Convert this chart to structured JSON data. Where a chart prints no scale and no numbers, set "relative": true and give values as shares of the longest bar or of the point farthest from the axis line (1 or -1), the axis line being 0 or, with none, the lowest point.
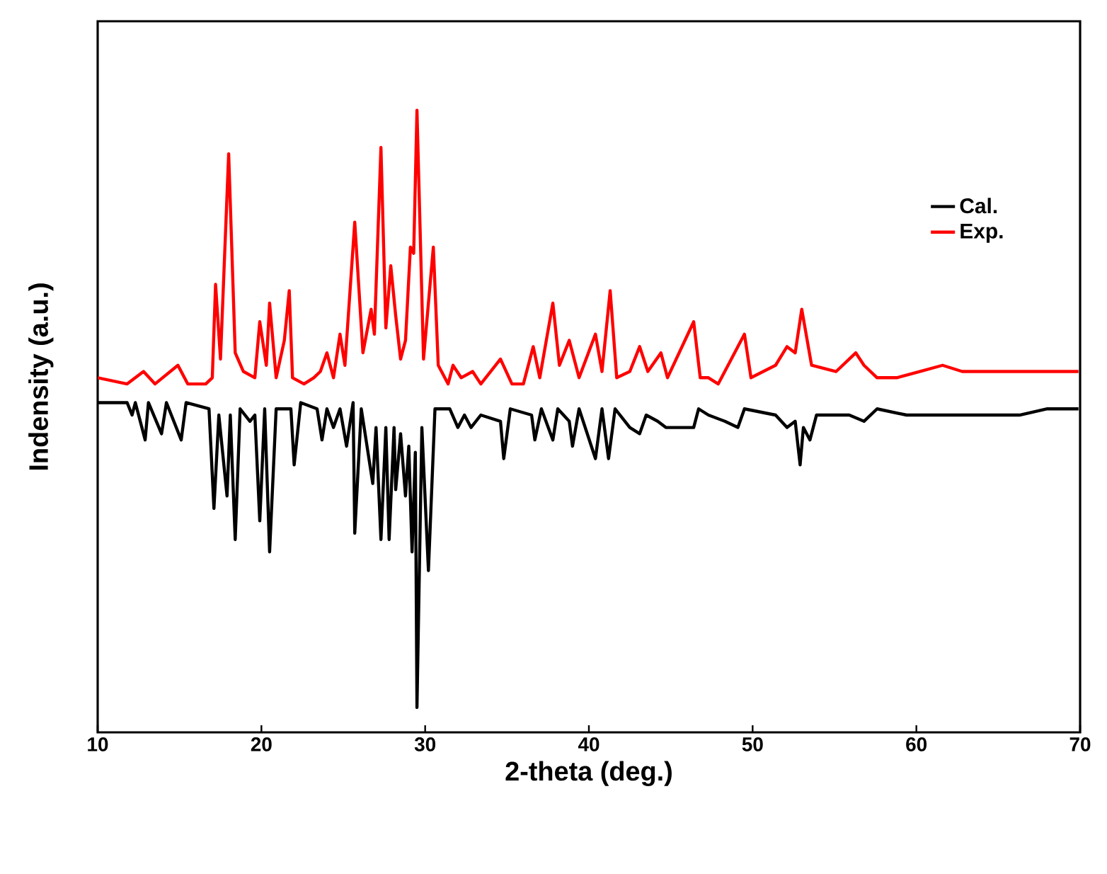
{
  "chart_data": {
    "type": "line",
    "xlabel": "2-theta (deg.)",
    "ylabel": "Indensity (a.u.)",
    "relative": true,
    "xlim": [
      10,
      70
    ],
    "xticks": [
      10,
      20,
      30,
      40,
      50,
      60,
      70
    ],
    "grid": false,
    "legend": "top right",
    "marker": "none",
    "line_style": "solid",
    "series": [
      {
        "name": "Cal.",
        "color": "#000000",
        "x": [
          10.0,
          11.8,
          12.1,
          12.3,
          12.9,
          13.1,
          13.9,
          14.2,
          15.1,
          15.4,
          16.8,
          17.1,
          17.4,
          17.9,
          18.1,
          18.4,
          18.7,
          19.3,
          19.6,
          19.9,
          20.2,
          20.5,
          20.9,
          21.8,
          22.0,
          22.4,
          23.4,
          23.7,
          24.0,
          24.4,
          24.8,
          25.2,
          25.6,
          25.7,
          26.1,
          26.8,
          27.0,
          27.3,
          27.6,
          27.8,
          28.1,
          28.2,
          28.5,
          28.8,
          29.0,
          29.2,
          29.4,
          29.5,
          29.8,
          30.2,
          30.6,
          31.5,
          32.0,
          32.4,
          32.8,
          33.4,
          34.6,
          34.8,
          35.2,
          36.5,
          36.7,
          37.1,
          37.8,
          38.1,
          38.8,
          39.0,
          39.4,
          40.4,
          40.8,
          41.2,
          41.6,
          42.5,
          43.1,
          43.5,
          44.2,
          44.7,
          46.4,
          46.7,
          47.3,
          48.3,
          49.1,
          49.5,
          51.4,
          52.1,
          52.6,
          52.9,
          53.1,
          53.5,
          53.9,
          55.9,
          56.8,
          57.6,
          59.4,
          60.2,
          62.8,
          64.5,
          66.3,
          68.0,
          69.9
        ],
        "values": [
          0.53,
          0.53,
          0.51,
          0.53,
          0.47,
          0.53,
          0.48,
          0.53,
          0.47,
          0.53,
          0.52,
          0.36,
          0.51,
          0.38,
          0.51,
          0.31,
          0.52,
          0.5,
          0.51,
          0.34,
          0.52,
          0.29,
          0.52,
          0.52,
          0.43,
          0.53,
          0.52,
          0.47,
          0.52,
          0.49,
          0.52,
          0.46,
          0.53,
          0.32,
          0.52,
          0.4,
          0.49,
          0.31,
          0.49,
          0.31,
          0.49,
          0.39,
          0.48,
          0.38,
          0.46,
          0.29,
          0.45,
          0.04,
          0.49,
          0.26,
          0.52,
          0.52,
          0.49,
          0.51,
          0.49,
          0.51,
          0.5,
          0.44,
          0.52,
          0.51,
          0.47,
          0.52,
          0.47,
          0.52,
          0.5,
          0.46,
          0.52,
          0.44,
          0.52,
          0.44,
          0.52,
          0.49,
          0.48,
          0.51,
          0.5,
          0.49,
          0.49,
          0.52,
          0.51,
          0.5,
          0.49,
          0.52,
          0.51,
          0.49,
          0.5,
          0.43,
          0.49,
          0.47,
          0.51,
          0.51,
          0.5,
          0.52,
          0.51,
          0.51,
          0.51,
          0.51,
          0.51,
          0.52,
          0.52
        ]
      },
      {
        "name": "Exp.",
        "color": "#ff0000",
        "x": [
          10.0,
          11.8,
          12.8,
          13.5,
          14.9,
          15.5,
          16.6,
          17.0,
          17.2,
          17.5,
          18.0,
          18.4,
          18.9,
          19.6,
          19.9,
          20.3,
          20.5,
          20.9,
          21.4,
          21.7,
          21.9,
          22.6,
          23.2,
          23.6,
          24.0,
          24.4,
          24.8,
          25.1,
          25.7,
          26.2,
          26.7,
          26.9,
          27.3,
          27.6,
          27.9,
          28.2,
          28.5,
          28.8,
          29.1,
          29.3,
          29.5,
          29.9,
          30.5,
          30.8,
          31.4,
          31.7,
          32.2,
          32.9,
          33.4,
          34.6,
          35.3,
          36.0,
          36.6,
          37.0,
          37.8,
          38.2,
          38.8,
          39.4,
          40.4,
          40.8,
          41.3,
          41.7,
          42.5,
          43.1,
          43.6,
          44.4,
          44.8,
          46.4,
          46.8,
          47.3,
          47.9,
          49.5,
          49.9,
          51.4,
          52.1,
          52.6,
          53.0,
          53.6,
          55.1,
          56.3,
          56.8,
          57.6,
          58.8,
          60.2,
          61.6,
          62.8,
          64.5,
          66.3,
          67.6,
          68.9,
          69.9
        ],
        "values": [
          0.57,
          0.56,
          0.58,
          0.56,
          0.59,
          0.56,
          0.56,
          0.57,
          0.72,
          0.6,
          0.93,
          0.61,
          0.58,
          0.57,
          0.66,
          0.59,
          0.69,
          0.57,
          0.63,
          0.71,
          0.57,
          0.56,
          0.57,
          0.58,
          0.61,
          0.57,
          0.64,
          0.59,
          0.82,
          0.61,
          0.68,
          0.64,
          0.94,
          0.65,
          0.75,
          0.67,
          0.6,
          0.63,
          0.78,
          0.77,
          1.0,
          0.6,
          0.78,
          0.59,
          0.56,
          0.59,
          0.57,
          0.58,
          0.56,
          0.6,
          0.56,
          0.56,
          0.62,
          0.57,
          0.69,
          0.59,
          0.63,
          0.57,
          0.64,
          0.58,
          0.71,
          0.57,
          0.58,
          0.62,
          0.58,
          0.61,
          0.57,
          0.66,
          0.57,
          0.57,
          0.56,
          0.64,
          0.57,
          0.59,
          0.62,
          0.61,
          0.68,
          0.59,
          0.58,
          0.61,
          0.59,
          0.57,
          0.57,
          0.58,
          0.59,
          0.58,
          0.58,
          0.58,
          0.58,
          0.58,
          0.58
        ]
      }
    ]
  }
}
